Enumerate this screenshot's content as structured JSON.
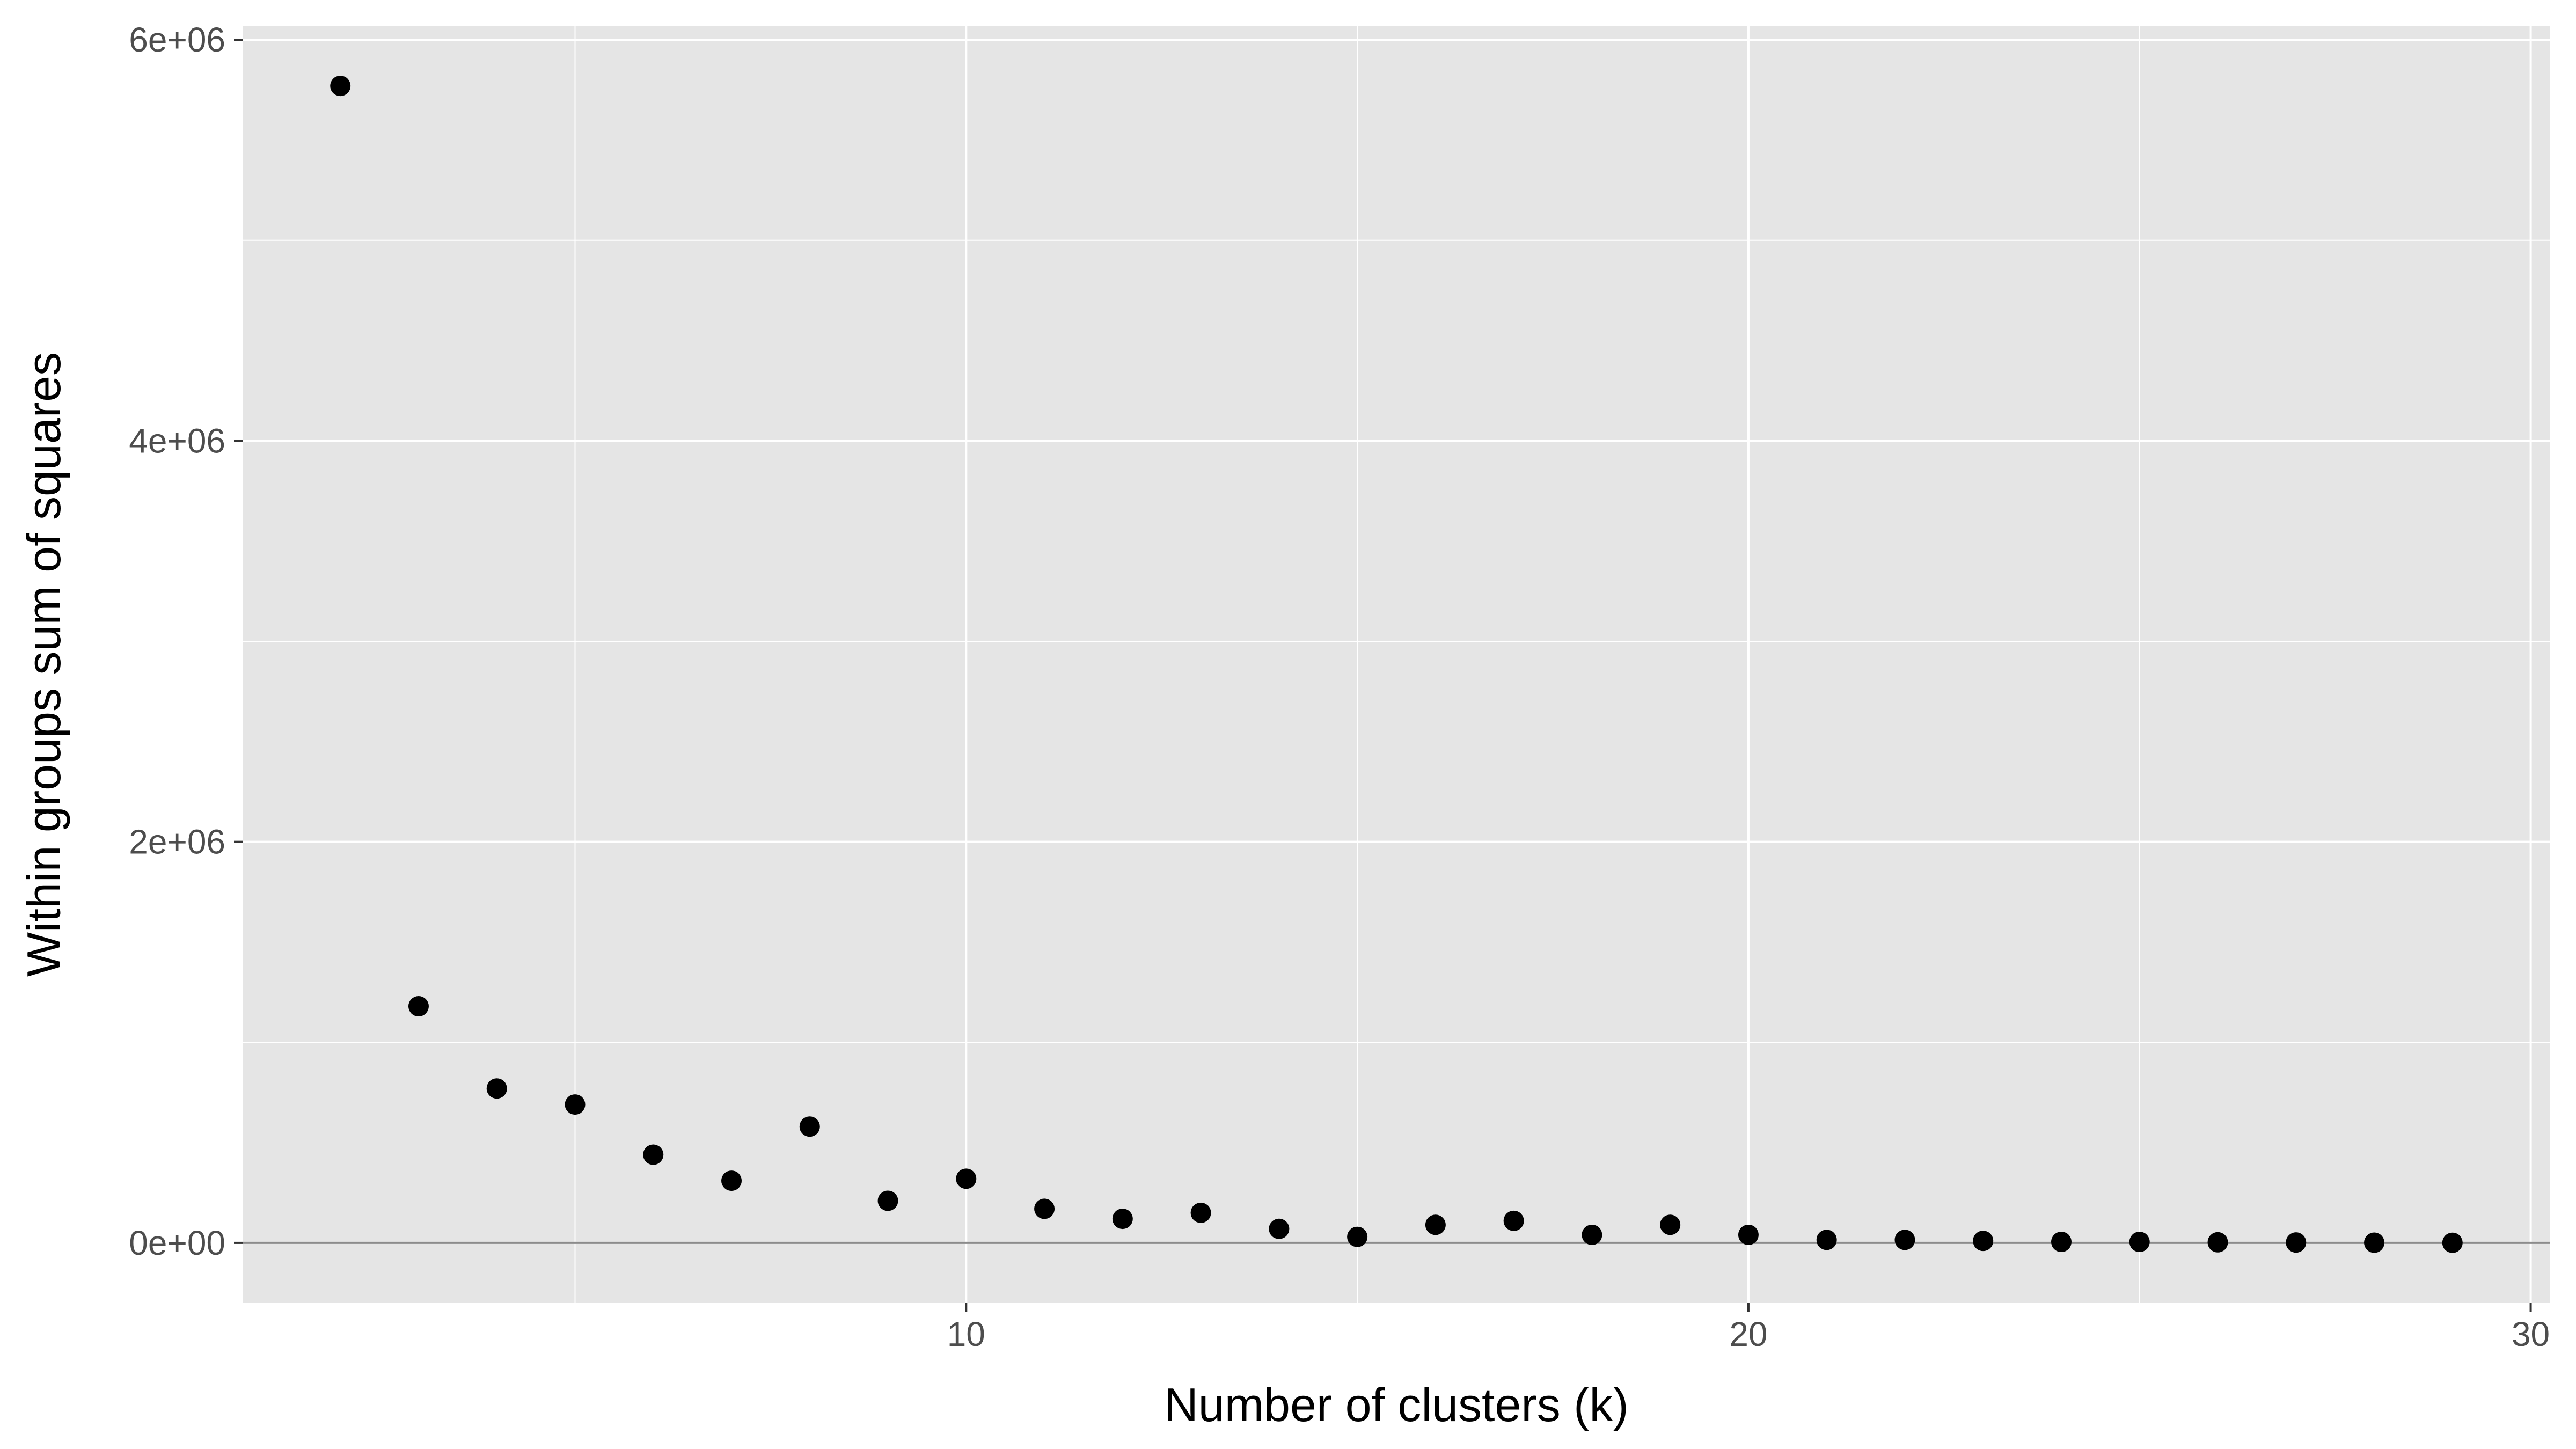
{
  "chart_data": {
    "type": "scatter",
    "title": "",
    "xlabel": "Number of clusters (k)",
    "ylabel": "Within groups sum of squares",
    "xlim": [
      0.75,
      30.25
    ],
    "ylim": [
      -300000,
      6070000
    ],
    "x_ticks": [
      10,
      20,
      30
    ],
    "x_tick_labels": [
      "10",
      "20",
      "30"
    ],
    "y_ticks": [
      0,
      2000000,
      4000000,
      6000000
    ],
    "y_tick_labels": [
      "0e+00",
      "2e+06",
      "4e+06",
      "6e+06"
    ],
    "grid": true,
    "hline": 0,
    "colors": {
      "panel": "#e5e5e5",
      "grid": "#ffffff",
      "point": "#000000",
      "hline": "#8c8c8c"
    },
    "series": [
      {
        "x": [
          2,
          3,
          4,
          5,
          6,
          7,
          8,
          9,
          10,
          11,
          12,
          13,
          14,
          15,
          16,
          17,
          18,
          19,
          20,
          21,
          22,
          23,
          24,
          25,
          26,
          27,
          28,
          29
        ],
        "y": [
          5770000,
          1180000,
          770000,
          690000,
          440000,
          310000,
          580000,
          210000,
          320000,
          170000,
          120000,
          150000,
          70000,
          30000,
          90000,
          110000,
          40000,
          90000,
          40000,
          15000,
          15000,
          10000,
          5000,
          5000,
          3000,
          2000,
          1000,
          500
        ]
      }
    ]
  }
}
